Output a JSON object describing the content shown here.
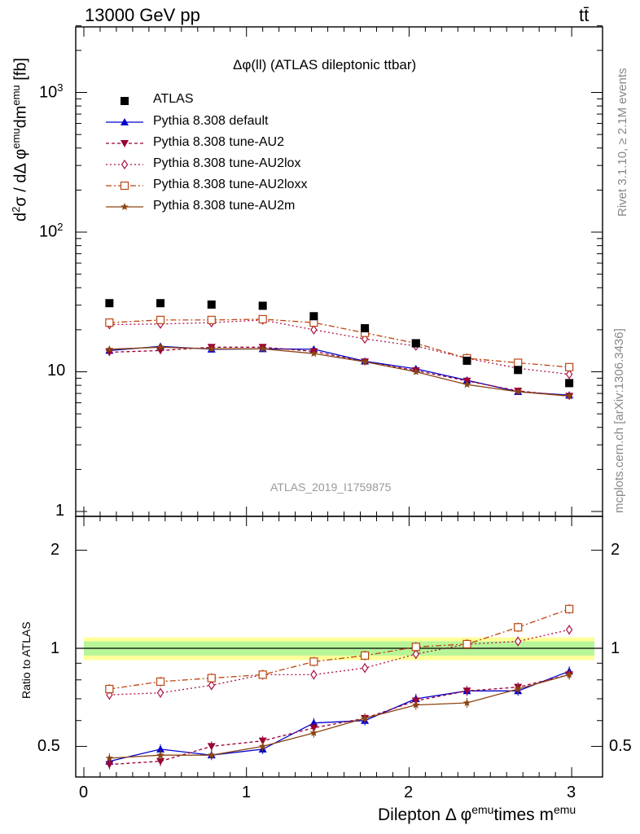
{
  "header": {
    "beam_label": "13000 GeV pp",
    "process_label": "tt̄"
  },
  "side_labels": {
    "rivet": "Rivet 3.1.10, ≥ 2.1M events",
    "mcplots": "mcplots.cern.ch [arXiv:1306.3436]"
  },
  "main_plot": {
    "title": "Δφ(ll) (ATLAS dileptonic ttbar)",
    "ylabel": "d²σ / dΔ φemudmemu [fb]",
    "ylabel_parts": {
      "d": "d",
      "two": "2",
      "sigma": "σ / dΔ φ",
      "emu1": "emu",
      "dm": "dm",
      "emu2": "emu",
      "unit": " [fb]"
    },
    "watermark": "ATLAS_2019_I1759875",
    "y_tick_labels": {
      "1e3_base": "10",
      "1e3_exp": "3",
      "1e2_base": "10",
      "1e2_exp": "2",
      "t10": "10",
      "t1": "1"
    }
  },
  "ratio_plot": {
    "ylabel": "Ratio to ATLAS",
    "y_tick_labels": [
      "0.5",
      "1",
      "2"
    ]
  },
  "x_axis": {
    "label_parts": {
      "a": "Dilepton",
      "b": "Δ φ",
      "c": "emu",
      "d": "times m",
      "e": "emu"
    },
    "tick_labels": [
      "0",
      "1",
      "2",
      "3"
    ]
  },
  "chart_data": {
    "type": "line",
    "title": "Δφ(ll) (ATLAS dileptonic ttbar)",
    "xlabel": "Dilepton Δ φemutimes memu",
    "ylabel": "d²σ / dΔ φemudmemu [fb]",
    "xlim": [
      -0.1,
      3.15
    ],
    "ylim": [
      0.9,
      3000
    ],
    "y_scale": "log",
    "ratio_ylim": [
      0.4,
      2.4
    ],
    "ratio_y_scale": "log",
    "ratio_ylabel": "Ratio to ATLAS",
    "legend_position": "top-left",
    "x": [
      0.157,
      0.471,
      0.785,
      1.1,
      1.414,
      1.728,
      2.042,
      2.356,
      2.67,
      2.985
    ],
    "data": {
      "name": "ATLAS",
      "values": [
        31.0,
        31.0,
        30.3,
        29.7,
        25.0,
        20.5,
        16.0,
        12.0,
        10.3,
        8.3
      ],
      "band_inner": 0.05,
      "band_outer": 0.08,
      "color": "#000000"
    },
    "series": [
      {
        "name": "Pythia 8.308 default",
        "color": "#0000cc",
        "dash": "",
        "marker": "triangle",
        "values": [
          14.2,
          15.2,
          14.5,
          14.6,
          14.5,
          11.9,
          10.5,
          8.7,
          7.2,
          6.8
        ],
        "ratio": [
          0.45,
          0.49,
          0.47,
          0.49,
          0.59,
          0.6,
          0.7,
          0.74,
          0.74,
          0.85
        ]
      },
      {
        "name": "Pythia 8.308 tune-AU2",
        "color": "#990033",
        "dash": "4,3",
        "marker": "triangle-down",
        "values": [
          13.8,
          14.2,
          15.0,
          15.0,
          14.0,
          11.8,
          10.2,
          8.6,
          7.3,
          6.7
        ],
        "ratio": [
          0.44,
          0.45,
          0.5,
          0.52,
          0.57,
          0.61,
          0.69,
          0.74,
          0.76,
          0.83
        ]
      },
      {
        "name": "Pythia 8.308 tune-AU2lox",
        "color": "#aa1144",
        "dash": "2,3",
        "marker": "diamond-open",
        "values": [
          21.8,
          22.0,
          22.5,
          23.5,
          20.0,
          17.2,
          15.3,
          12.5,
          10.6,
          9.6
        ],
        "ratio": [
          0.72,
          0.73,
          0.77,
          0.83,
          0.83,
          0.87,
          0.96,
          1.03,
          1.05,
          1.14
        ]
      },
      {
        "name": "Pythia 8.308 tune-AU2loxx",
        "color": "#bb4411",
        "dash": "7,3,2,3",
        "marker": "square-open",
        "values": [
          22.5,
          23.5,
          23.5,
          23.8,
          22.5,
          19.0,
          16.0,
          12.5,
          11.6,
          10.8
        ],
        "ratio": [
          0.75,
          0.79,
          0.81,
          0.83,
          0.91,
          0.95,
          1.01,
          1.03,
          1.16,
          1.32
        ]
      },
      {
        "name": "Pythia 8.308 tune-AU2m",
        "color": "#8b4513",
        "dash": "",
        "marker": "star",
        "values": [
          14.5,
          15.0,
          14.6,
          14.6,
          13.5,
          11.8,
          10.0,
          8.1,
          7.2,
          6.7
        ],
        "ratio": [
          0.46,
          0.47,
          0.47,
          0.5,
          0.55,
          0.61,
          0.67,
          0.68,
          0.75,
          0.83
        ]
      }
    ]
  }
}
